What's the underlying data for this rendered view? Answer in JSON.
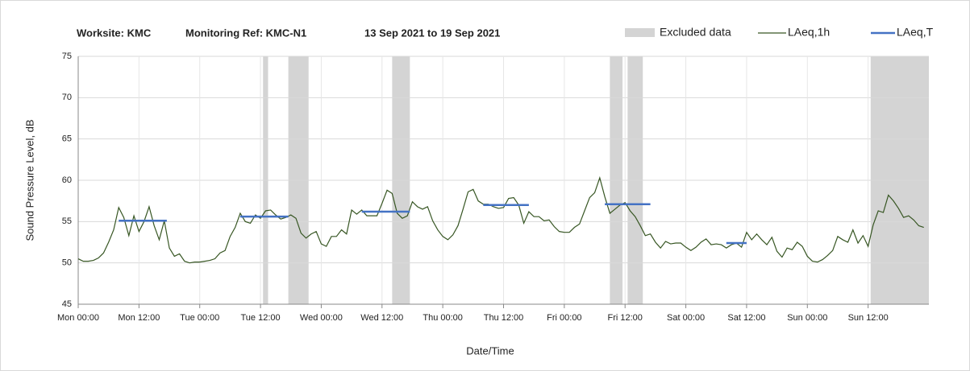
{
  "chart_data": {
    "type": "line",
    "title": [
      "Worksite: KMC",
      "Monitoring Ref: KMC-N1",
      "13 Sep 2021 to 19 Sep 2021"
    ],
    "xlabel": "Date/Time",
    "ylabel": "Sound Pressure Level, dB",
    "xlim": [
      0,
      168
    ],
    "ylim": [
      45,
      75
    ],
    "yticks": [
      45,
      50,
      55,
      60,
      65,
      70,
      75
    ],
    "xticks": [
      {
        "value": 0,
        "label": "Mon 00:00"
      },
      {
        "value": 12,
        "label": "Mon 12:00"
      },
      {
        "value": 24,
        "label": "Tue 00:00"
      },
      {
        "value": 36,
        "label": "Tue 12:00"
      },
      {
        "value": 48,
        "label": "Wed 00:00"
      },
      {
        "value": 60,
        "label": "Wed 12:00"
      },
      {
        "value": 72,
        "label": "Thu 00:00"
      },
      {
        "value": 84,
        "label": "Thu 12:00"
      },
      {
        "value": 96,
        "label": "Fri 00:00"
      },
      {
        "value": 108,
        "label": "Fri 12:00"
      },
      {
        "value": 120,
        "label": "Sat 00:00"
      },
      {
        "value": 132,
        "label": "Sat 12:00"
      },
      {
        "value": 144,
        "label": "Sun 00:00"
      },
      {
        "value": 156,
        "label": "Sun 12:00"
      }
    ],
    "grid": true,
    "excluded": {
      "name": "Excluded data",
      "color": "#d4d4d4",
      "ranges": [
        [
          36.5,
          37.5
        ],
        [
          41.5,
          45.5
        ],
        [
          62,
          65.5
        ],
        [
          105,
          107.5
        ],
        [
          108.5,
          111.5
        ],
        [
          156.5,
          168
        ]
      ]
    },
    "x": [
      0,
      1,
      2,
      3,
      4,
      5,
      6,
      7,
      8,
      9,
      10,
      11,
      12,
      13,
      14,
      15,
      16,
      17,
      18,
      19,
      20,
      21,
      22,
      23,
      24,
      25,
      26,
      27,
      28,
      29,
      30,
      31,
      32,
      33,
      34,
      35,
      36,
      37,
      38,
      39,
      40,
      41,
      42,
      43,
      44,
      45,
      46,
      47,
      48,
      49,
      50,
      51,
      52,
      53,
      54,
      55,
      56,
      57,
      58,
      59,
      60,
      61,
      62,
      63,
      64,
      65,
      66,
      67,
      68,
      69,
      70,
      71,
      72,
      73,
      74,
      75,
      76,
      77,
      78,
      79,
      80,
      81,
      82,
      83,
      84,
      85,
      86,
      87,
      88,
      89,
      90,
      91,
      92,
      93,
      94,
      95,
      96,
      97,
      98,
      99,
      100,
      101,
      102,
      103,
      104,
      105,
      106,
      107,
      108,
      109,
      110,
      111,
      112,
      113,
      114,
      115,
      116,
      117,
      118,
      119,
      120,
      121,
      122,
      123,
      124,
      125,
      126,
      127,
      128,
      129,
      130,
      131,
      132,
      133,
      134,
      135,
      136,
      137,
      138,
      139,
      140,
      141,
      142,
      143,
      144,
      145,
      146,
      147,
      148,
      149,
      150,
      151,
      152,
      153,
      154,
      155,
      156,
      157,
      158,
      159,
      160,
      161,
      162,
      163,
      164,
      165,
      166,
      167
    ],
    "series": [
      {
        "name": "LAeq,1h",
        "color": "#375623",
        "values": [
          50.5,
          50.2,
          50.2,
          50.3,
          50.6,
          51.2,
          52.5,
          54.0,
          56.7,
          55.5,
          53.3,
          55.7,
          53.8,
          55.0,
          56.8,
          54.5,
          52.8,
          55.1,
          51.8,
          50.8,
          51.1,
          50.2,
          50.0,
          50.1,
          50.1,
          50.2,
          50.3,
          50.5,
          51.2,
          51.5,
          53.2,
          54.3,
          56.0,
          55.0,
          54.8,
          55.8,
          55.4,
          56.3,
          56.4,
          55.8,
          55.3,
          55.5,
          55.8,
          55.4,
          53.6,
          53.0,
          53.5,
          53.8,
          52.3,
          52.0,
          53.2,
          53.2,
          54.0,
          53.5,
          56.4,
          55.9,
          56.4,
          55.7,
          55.7,
          55.7,
          57.2,
          58.8,
          58.4,
          56.0,
          55.4,
          55.7,
          57.4,
          56.8,
          56.5,
          56.8,
          55.1,
          54.0,
          53.2,
          52.8,
          53.4,
          54.5,
          56.5,
          58.6,
          58.9,
          57.5,
          57.1,
          57.1,
          56.8,
          56.6,
          56.7,
          57.8,
          57.9,
          57.0,
          54.8,
          56.2,
          55.6,
          55.6,
          55.1,
          55.2,
          54.4,
          53.8,
          53.7,
          53.7,
          54.3,
          54.7,
          56.3,
          57.9,
          58.5,
          60.3,
          58.0,
          56.0,
          56.5,
          57.0,
          57.3,
          56.3,
          55.6,
          54.5,
          53.3,
          53.5,
          52.5,
          51.8,
          52.6,
          52.3,
          52.4,
          52.4,
          51.9,
          51.5,
          51.9,
          52.5,
          52.9,
          52.2,
          52.3,
          52.2,
          51.8,
          52.2,
          52.4,
          51.9,
          53.7,
          52.8,
          53.5,
          52.8,
          52.2,
          53.1,
          51.4,
          50.7,
          51.8,
          51.6,
          52.5,
          52.0,
          50.8,
          50.2,
          50.1,
          50.4,
          50.9,
          51.5,
          53.2,
          52.8,
          52.5,
          54.0,
          52.4,
          53.3,
          52.0,
          54.6,
          56.3,
          56.1,
          58.2,
          57.5,
          56.6,
          55.5,
          55.7,
          55.2,
          54.5,
          54.3
        ]
      }
    ],
    "laeq_t": {
      "name": "LAeq,T",
      "color": "#4472c4",
      "segments": [
        {
          "start": 8,
          "end": 17.5,
          "value": 55.1
        },
        {
          "start": 32,
          "end": 41.5,
          "value": 55.6
        },
        {
          "start": 56,
          "end": 65.5,
          "value": 56.2
        },
        {
          "start": 80,
          "end": 89,
          "value": 57.0
        },
        {
          "start": 104,
          "end": 113,
          "value": 57.1
        },
        {
          "start": 128,
          "end": 132,
          "value": 52.4
        }
      ]
    }
  }
}
